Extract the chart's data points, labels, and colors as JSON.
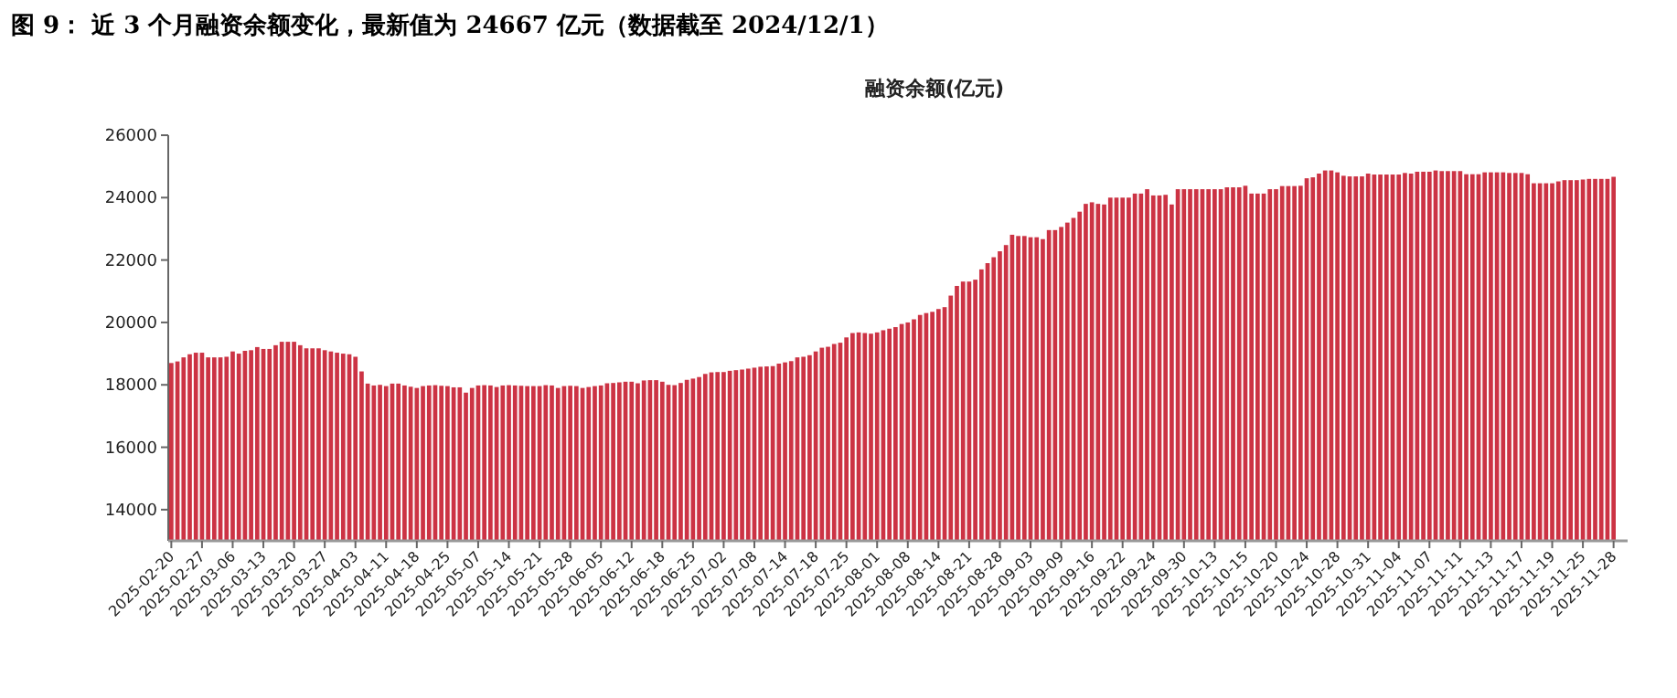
{
  "chart_data": {
    "type": "bar",
    "title": "融资余额(亿元)",
    "annotations": [
      "图 9：  近 3 个月融资余额变化，最新值为 24667 亿元（数据截至 2024/12/1）"
    ],
    "categories": [
      "2025-02-20",
      null,
      null,
      null,
      null,
      "2025-02-27",
      null,
      null,
      null,
      null,
      "2025-03-06",
      null,
      null,
      null,
      null,
      "2025-03-13",
      null,
      null,
      null,
      null,
      "2025-03-20",
      null,
      null,
      null,
      null,
      "2025-03-27",
      null,
      null,
      null,
      null,
      "2025-04-03",
      null,
      null,
      null,
      null,
      "2025-04-11",
      null,
      null,
      null,
      null,
      "2025-04-18",
      null,
      null,
      null,
      null,
      "2025-04-25",
      null,
      null,
      null,
      null,
      "2025-05-07",
      null,
      null,
      null,
      null,
      "2025-05-14",
      null,
      null,
      null,
      null,
      "2025-05-21",
      null,
      null,
      null,
      null,
      "2025-05-28",
      null,
      null,
      null,
      null,
      "2025-06-05",
      null,
      null,
      null,
      null,
      "2025-06-12",
      null,
      null,
      null,
      null,
      "2025-06-18",
      null,
      null,
      null,
      null,
      "2025-06-25",
      null,
      null,
      null,
      null,
      "2025-07-02",
      null,
      null,
      null,
      null,
      "2025-07-08",
      null,
      null,
      null,
      null,
      "2025-07-14",
      null,
      null,
      null,
      null,
      "2025-07-18",
      null,
      null,
      null,
      null,
      "2025-07-25",
      null,
      null,
      null,
      null,
      "2025-08-01",
      null,
      null,
      null,
      null,
      "2025-08-08",
      null,
      null,
      null,
      null,
      "2025-08-14",
      null,
      null,
      null,
      null,
      "2025-08-21",
      null,
      null,
      null,
      null,
      "2025-08-28",
      null,
      null,
      null,
      null,
      "2025-09-03",
      null,
      null,
      null,
      null,
      "2025-09-09",
      null,
      null,
      null,
      null,
      "2025-09-16",
      null,
      null,
      null,
      null,
      "2025-09-22",
      null,
      null,
      null,
      null,
      "2025-09-24",
      null,
      null,
      null,
      null,
      "2025-09-30",
      null,
      null,
      null,
      null,
      "2025-10-13",
      null,
      null,
      null,
      null,
      "2025-10-15",
      null,
      null,
      null,
      null,
      "2025-10-20",
      null,
      null,
      null,
      null,
      "2025-10-24",
      null,
      null,
      null,
      null,
      "2025-10-28",
      null,
      null,
      null,
      null,
      "2025-10-31",
      null,
      null,
      null,
      null,
      "2025-11-04",
      null,
      null,
      null,
      null,
      "2025-11-07",
      null,
      null,
      null,
      null,
      "2025-11-11",
      null,
      null,
      null,
      null,
      "2025-11-13",
      null,
      null,
      null,
      null,
      "2025-11-17",
      null,
      null,
      null,
      null,
      "2025-11-19",
      null,
      null,
      null,
      null,
      "2025-11-25",
      null,
      null,
      null,
      null,
      "2025-11-28"
    ],
    "values": [
      18700,
      18750,
      18880,
      18980,
      19030,
      19030,
      18880,
      18880,
      18880,
      18900,
      19070,
      19000,
      19090,
      19110,
      19210,
      19150,
      19150,
      19270,
      19380,
      19380,
      19380,
      19270,
      19170,
      19170,
      19170,
      19110,
      19070,
      19030,
      19000,
      18980,
      18900,
      18430,
      18040,
      17980,
      18000,
      17960,
      18040,
      18040,
      17980,
      17940,
      17900,
      17960,
      17980,
      17990,
      17970,
      17960,
      17920,
      17920,
      17750,
      17900,
      17980,
      17990,
      17980,
      17930,
      17980,
      17990,
      17980,
      17970,
      17960,
      17960,
      17960,
      17990,
      17980,
      17900,
      17960,
      17970,
      17960,
      17900,
      17930,
      17960,
      17980,
      18050,
      18060,
      18080,
      18100,
      18100,
      18050,
      18140,
      18150,
      18150,
      18100,
      18000,
      17990,
      18060,
      18160,
      18200,
      18250,
      18350,
      18400,
      18410,
      18410,
      18450,
      18470,
      18490,
      18520,
      18550,
      18580,
      18590,
      18600,
      18680,
      18720,
      18760,
      18880,
      18900,
      18950,
      19070,
      19190,
      19220,
      19310,
      19350,
      19520,
      19660,
      19680,
      19660,
      19640,
      19680,
      19750,
      19800,
      19850,
      19950,
      20000,
      20100,
      20240,
      20300,
      20340,
      20430,
      20490,
      20860,
      21170,
      21310,
      21310,
      21370,
      21700,
      21900,
      22090,
      22280,
      22480,
      22810,
      22770,
      22770,
      22730,
      22730,
      22670,
      22960,
      22960,
      23060,
      23200,
      23350,
      23550,
      23800,
      23850,
      23800,
      23780,
      24000,
      24000,
      24000,
      24000,
      24130,
      24130,
      24270,
      24070,
      24070,
      24090,
      23780,
      24270,
      24270,
      24270,
      24270,
      24270,
      24270,
      24270,
      24270,
      24330,
      24330,
      24330,
      24380,
      24130,
      24130,
      24130,
      24270,
      24270,
      24370,
      24370,
      24370,
      24380,
      24620,
      24650,
      24770,
      24870,
      24870,
      24810,
      24700,
      24680,
      24680,
      24680,
      24770,
      24740,
      24740,
      24740,
      24740,
      24740,
      24790,
      24770,
      24830,
      24830,
      24830,
      24870,
      24850,
      24850,
      24850,
      24850,
      24750,
      24750,
      24750,
      24810,
      24810,
      24810,
      24810,
      24790,
      24790,
      24790,
      24750,
      24460,
      24460,
      24460,
      24460,
      24520,
      24560,
      24560,
      24560,
      24580,
      24600,
      24600,
      24600,
      24600,
      24667
    ],
    "color": "#cc3344",
    "ylim": [
      13000,
      26000
    ],
    "yticks": [
      14000,
      16000,
      18000,
      20000,
      22000,
      24000,
      26000
    ]
  }
}
